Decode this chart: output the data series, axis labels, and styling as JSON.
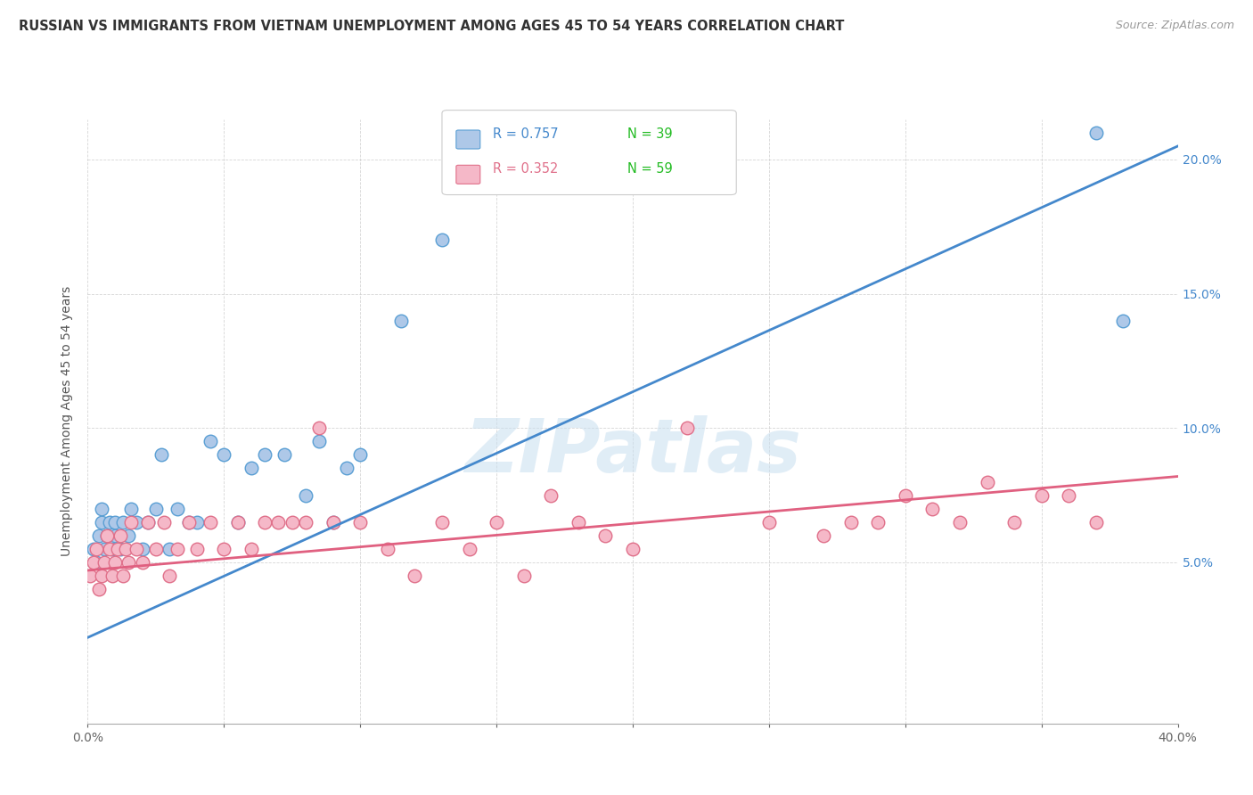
{
  "title": "RUSSIAN VS IMMIGRANTS FROM VIETNAM UNEMPLOYMENT AMONG AGES 45 TO 54 YEARS CORRELATION CHART",
  "source": "Source: ZipAtlas.com",
  "ylabel": "Unemployment Among Ages 45 to 54 years",
  "xlim": [
    0.0,
    0.4
  ],
  "ylim": [
    -0.01,
    0.215
  ],
  "xtick_positions": [
    0.0,
    0.05,
    0.1,
    0.15,
    0.2,
    0.25,
    0.3,
    0.35,
    0.4
  ],
  "xtick_show": [
    0.0,
    0.4
  ],
  "ytick_vals_right": [
    0.05,
    0.1,
    0.15,
    0.2
  ],
  "ytick_labels_right": [
    "5.0%",
    "10.0%",
    "15.0%",
    "20.0%"
  ],
  "background_color": "#ffffff",
  "watermark_text": "ZIPatlas",
  "legend_r1": "R = 0.757",
  "legend_n1": "N = 39",
  "legend_r2": "R = 0.352",
  "legend_n2": "N = 59",
  "blue_fill": "#aec8e8",
  "blue_edge": "#5a9fd4",
  "pink_fill": "#f5b8c8",
  "pink_edge": "#e0708a",
  "blue_line_color": "#4488cc",
  "pink_line_color": "#e06080",
  "grid_color": "#cccccc",
  "blue_scatter_x": [
    0.002,
    0.003,
    0.004,
    0.005,
    0.005,
    0.006,
    0.007,
    0.008,
    0.009,
    0.01,
    0.01,
    0.012,
    0.013,
    0.015,
    0.016,
    0.018,
    0.02,
    0.022,
    0.025,
    0.027,
    0.03,
    0.033,
    0.037,
    0.04,
    0.045,
    0.05,
    0.055,
    0.06,
    0.065,
    0.072,
    0.08,
    0.085,
    0.09,
    0.095,
    0.1,
    0.115,
    0.13,
    0.37,
    0.38
  ],
  "blue_scatter_y": [
    0.055,
    0.05,
    0.06,
    0.065,
    0.07,
    0.055,
    0.06,
    0.065,
    0.055,
    0.06,
    0.065,
    0.055,
    0.065,
    0.06,
    0.07,
    0.065,
    0.055,
    0.065,
    0.07,
    0.09,
    0.055,
    0.07,
    0.065,
    0.065,
    0.095,
    0.09,
    0.065,
    0.085,
    0.09,
    0.09,
    0.075,
    0.095,
    0.065,
    0.085,
    0.09,
    0.14,
    0.17,
    0.21,
    0.14
  ],
  "pink_scatter_x": [
    0.001,
    0.002,
    0.003,
    0.004,
    0.005,
    0.006,
    0.007,
    0.008,
    0.009,
    0.01,
    0.011,
    0.012,
    0.013,
    0.014,
    0.015,
    0.016,
    0.018,
    0.02,
    0.022,
    0.025,
    0.028,
    0.03,
    0.033,
    0.037,
    0.04,
    0.045,
    0.05,
    0.055,
    0.06,
    0.065,
    0.07,
    0.075,
    0.08,
    0.085,
    0.09,
    0.1,
    0.11,
    0.12,
    0.13,
    0.14,
    0.15,
    0.16,
    0.17,
    0.18,
    0.19,
    0.2,
    0.22,
    0.25,
    0.27,
    0.28,
    0.29,
    0.3,
    0.31,
    0.32,
    0.33,
    0.34,
    0.35,
    0.36,
    0.37
  ],
  "pink_scatter_y": [
    0.045,
    0.05,
    0.055,
    0.04,
    0.045,
    0.05,
    0.06,
    0.055,
    0.045,
    0.05,
    0.055,
    0.06,
    0.045,
    0.055,
    0.05,
    0.065,
    0.055,
    0.05,
    0.065,
    0.055,
    0.065,
    0.045,
    0.055,
    0.065,
    0.055,
    0.065,
    0.055,
    0.065,
    0.055,
    0.065,
    0.065,
    0.065,
    0.065,
    0.1,
    0.065,
    0.065,
    0.055,
    0.045,
    0.065,
    0.055,
    0.065,
    0.045,
    0.075,
    0.065,
    0.06,
    0.055,
    0.1,
    0.065,
    0.06,
    0.065,
    0.065,
    0.075,
    0.07,
    0.065,
    0.08,
    0.065,
    0.075,
    0.075,
    0.065
  ],
  "blue_trend_x0": 0.0,
  "blue_trend_x1": 0.4,
  "blue_trend_y0": 0.022,
  "blue_trend_y1": 0.205,
  "pink_trend_x0": 0.0,
  "pink_trend_x1": 0.4,
  "pink_trend_y0": 0.047,
  "pink_trend_y1": 0.082
}
